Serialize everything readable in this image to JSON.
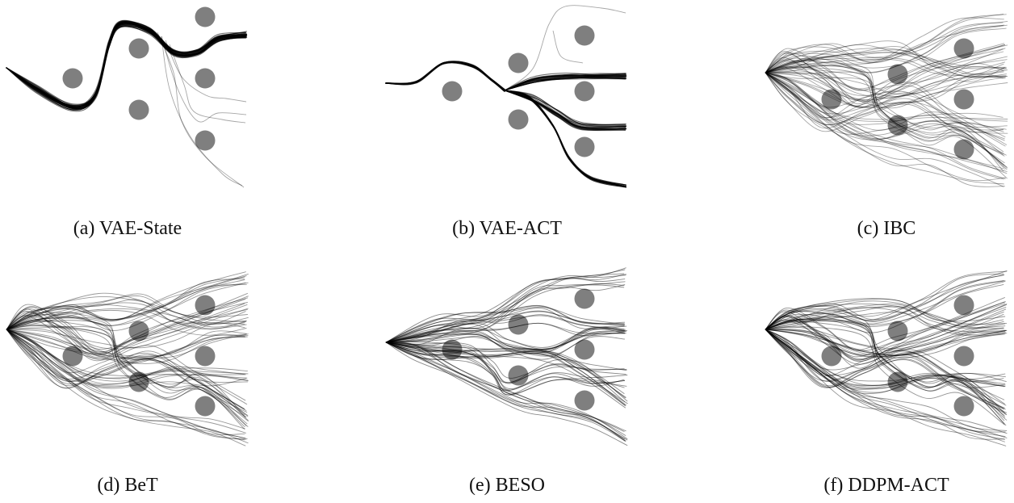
{
  "figure": {
    "panels": [
      {
        "key": "vae_state",
        "caption": "(a) VAE-State"
      },
      {
        "key": "vae_act",
        "caption": "(b) VAE-ACT"
      },
      {
        "key": "ibc",
        "caption": "(c) IBC"
      },
      {
        "key": "bet",
        "caption": "(d) BeT"
      },
      {
        "key": "beso",
        "caption": "(e) BESO"
      },
      {
        "key": "ddpm_act",
        "caption": "(f) DDPM-ACT"
      }
    ],
    "colors": {
      "obstacle": "#7f7f7f",
      "trajectory": "#000000",
      "background": "#ffffff"
    }
  }
}
